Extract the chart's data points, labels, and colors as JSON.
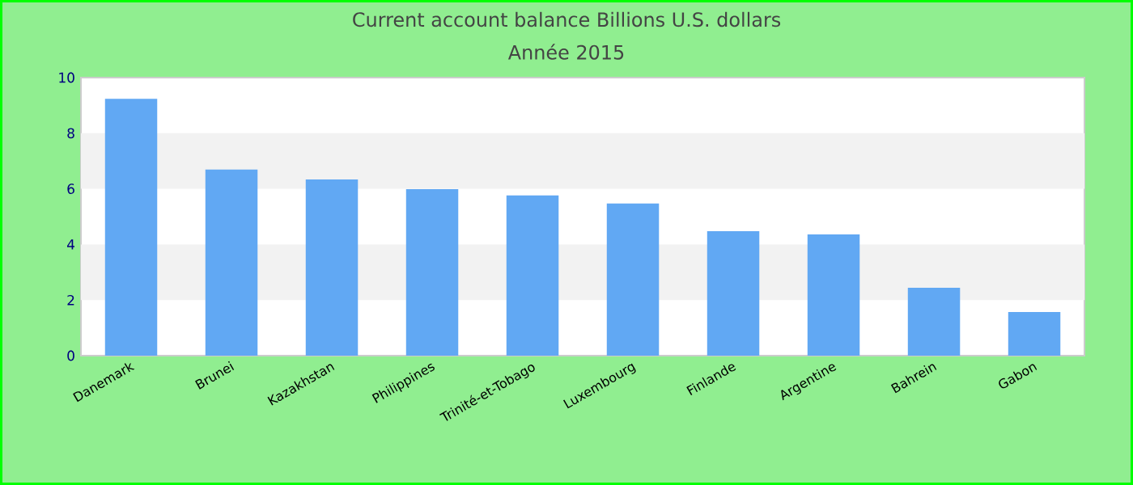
{
  "chart_data": {
    "type": "bar",
    "title": "Current account balance Billions U.S. dollars",
    "subtitle": "Année 2015",
    "categories": [
      "Danemark",
      "Brunei",
      "Kazakhstan",
      "Philippines",
      "Trinité-et-Tobago",
      "Luxembourg",
      "Finlande",
      "Argentine",
      "Bahrein",
      "Gabon"
    ],
    "values": [
      9.24,
      6.69,
      6.34,
      5.99,
      5.76,
      5.47,
      4.48,
      4.36,
      2.44,
      1.57
    ],
    "color": "#61a8f3",
    "ylim": [
      0,
      10
    ],
    "yticks": [
      0,
      2,
      4,
      6,
      8,
      10
    ],
    "bands": [
      {
        "axis": "y",
        "from": 2,
        "to": 4,
        "color": "#f2f2f2"
      },
      {
        "axis": "y",
        "from": 6,
        "to": 8,
        "color": "#f2f2f2"
      }
    ]
  }
}
